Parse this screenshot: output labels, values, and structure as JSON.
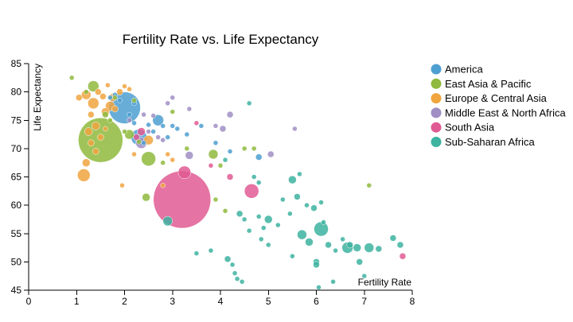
{
  "chart_data": {
    "type": "scatter",
    "title": "Fertility Rate vs. Life Expectancy",
    "xlabel": "Fertility Rate",
    "ylabel": "Life Expectancy",
    "xlim": [
      0,
      8
    ],
    "ylim": [
      45,
      85
    ],
    "x_ticks": [
      0,
      1,
      2,
      3,
      4,
      5,
      6,
      7,
      8
    ],
    "y_ticks": [
      45,
      50,
      55,
      60,
      65,
      70,
      75,
      80,
      85
    ],
    "grid": false,
    "legend_position": "right",
    "series": [
      {
        "name": "America",
        "color": "#4e9fd1",
        "points": [
          {
            "x": 2.0,
            "y": 77.2,
            "size": 20
          },
          {
            "x": 2.3,
            "y": 72.0,
            "size": 10
          },
          {
            "x": 2.7,
            "y": 75.0,
            "size": 7
          },
          {
            "x": 2.2,
            "y": 74.5,
            "size": 3
          },
          {
            "x": 1.9,
            "y": 78.5,
            "size": 3
          },
          {
            "x": 1.7,
            "y": 79.0,
            "size": 3
          },
          {
            "x": 2.1,
            "y": 76.0,
            "size": 3
          },
          {
            "x": 2.5,
            "y": 74.2,
            "size": 3
          },
          {
            "x": 2.6,
            "y": 73.0,
            "size": 3
          },
          {
            "x": 3.0,
            "y": 74.0,
            "size": 3
          },
          {
            "x": 2.4,
            "y": 71.0,
            "size": 3
          },
          {
            "x": 2.9,
            "y": 72.0,
            "size": 3
          },
          {
            "x": 3.3,
            "y": 72.5,
            "size": 3
          },
          {
            "x": 3.6,
            "y": 74.0,
            "size": 3
          },
          {
            "x": 3.9,
            "y": 71.0,
            "size": 3
          },
          {
            "x": 2.8,
            "y": 74.0,
            "size": 3
          },
          {
            "x": 1.8,
            "y": 79.5,
            "size": 3
          },
          {
            "x": 2.2,
            "y": 78.0,
            "size": 3
          },
          {
            "x": 4.2,
            "y": 69.5,
            "size": 3
          },
          {
            "x": 4.8,
            "y": 68.5,
            "size": 4
          },
          {
            "x": 3.1,
            "y": 73.5,
            "size": 3
          }
        ]
      },
      {
        "name": "East Asia & Pacific",
        "color": "#8fba3d",
        "points": [
          {
            "x": 1.5,
            "y": 71.5,
            "size": 28
          },
          {
            "x": 2.5,
            "y": 68.2,
            "size": 9
          },
          {
            "x": 1.35,
            "y": 81.0,
            "size": 7
          },
          {
            "x": 2.1,
            "y": 72.5,
            "size": 6
          },
          {
            "x": 2.45,
            "y": 61.4,
            "size": 5
          },
          {
            "x": 3.85,
            "y": 69.0,
            "size": 6
          },
          {
            "x": 0.9,
            "y": 82.5,
            "size": 3
          },
          {
            "x": 1.2,
            "y": 80.0,
            "size": 3
          },
          {
            "x": 1.6,
            "y": 76.0,
            "size": 4
          },
          {
            "x": 1.8,
            "y": 79.0,
            "size": 3
          },
          {
            "x": 2.2,
            "y": 78.5,
            "size": 3
          },
          {
            "x": 2.0,
            "y": 73.0,
            "size": 3
          },
          {
            "x": 2.8,
            "y": 67.5,
            "size": 3
          },
          {
            "x": 3.0,
            "y": 76.5,
            "size": 3
          },
          {
            "x": 3.9,
            "y": 61.0,
            "size": 3
          },
          {
            "x": 4.1,
            "y": 59.0,
            "size": 3
          },
          {
            "x": 4.7,
            "y": 70.0,
            "size": 3
          },
          {
            "x": 4.5,
            "y": 70.0,
            "size": 3
          },
          {
            "x": 7.1,
            "y": 63.5,
            "size": 3
          },
          {
            "x": 4.0,
            "y": 67.0,
            "size": 3
          },
          {
            "x": 3.3,
            "y": 70.0,
            "size": 3
          },
          {
            "x": 1.7,
            "y": 75.0,
            "size": 3
          },
          {
            "x": 2.3,
            "y": 71.2,
            "size": 3
          }
        ]
      },
      {
        "name": "Europe & Central Asia",
        "color": "#f0a53f",
        "points": [
          {
            "x": 1.15,
            "y": 65.3,
            "size": 8
          },
          {
            "x": 1.35,
            "y": 78.0,
            "size": 7
          },
          {
            "x": 1.2,
            "y": 79.5,
            "size": 6
          },
          {
            "x": 1.7,
            "y": 77.5,
            "size": 6
          },
          {
            "x": 1.75,
            "y": 79.0,
            "size": 5
          },
          {
            "x": 1.25,
            "y": 73.0,
            "size": 5
          },
          {
            "x": 1.4,
            "y": 74.0,
            "size": 5
          },
          {
            "x": 1.6,
            "y": 76.5,
            "size": 5
          },
          {
            "x": 1.45,
            "y": 80.0,
            "size": 4
          },
          {
            "x": 1.55,
            "y": 79.2,
            "size": 4
          },
          {
            "x": 1.3,
            "y": 76.0,
            "size": 4
          },
          {
            "x": 2.5,
            "y": 71.5,
            "size": 6
          },
          {
            "x": 1.2,
            "y": 67.5,
            "size": 5
          },
          {
            "x": 1.05,
            "y": 79.0,
            "size": 4
          },
          {
            "x": 1.9,
            "y": 80.0,
            "size": 4
          },
          {
            "x": 2.0,
            "y": 81.0,
            "size": 3
          },
          {
            "x": 1.65,
            "y": 81.2,
            "size": 3
          },
          {
            "x": 1.5,
            "y": 72.0,
            "size": 4
          },
          {
            "x": 1.4,
            "y": 69.5,
            "size": 4
          },
          {
            "x": 2.1,
            "y": 80.5,
            "size": 3
          },
          {
            "x": 1.8,
            "y": 77.0,
            "size": 4
          },
          {
            "x": 2.2,
            "y": 69.0,
            "size": 3
          },
          {
            "x": 2.9,
            "y": 69.0,
            "size": 3
          },
          {
            "x": 3.0,
            "y": 68.0,
            "size": 3
          },
          {
            "x": 1.95,
            "y": 63.5,
            "size": 3
          },
          {
            "x": 2.8,
            "y": 63.5,
            "size": 3
          },
          {
            "x": 1.3,
            "y": 71.0,
            "size": 4
          },
          {
            "x": 1.6,
            "y": 73.5,
            "size": 3
          }
        ]
      },
      {
        "name": "Middle East & North Africa",
        "color": "#a08ec4",
        "points": [
          {
            "x": 2.35,
            "y": 71.0,
            "size": 7
          },
          {
            "x": 3.35,
            "y": 68.8,
            "size": 5
          },
          {
            "x": 4.05,
            "y": 73.5,
            "size": 4
          },
          {
            "x": 4.2,
            "y": 76.0,
            "size": 4
          },
          {
            "x": 3.0,
            "y": 79.0,
            "size": 3
          },
          {
            "x": 2.9,
            "y": 78.0,
            "size": 3
          },
          {
            "x": 3.35,
            "y": 77.0,
            "size": 3
          },
          {
            "x": 5.05,
            "y": 69.0,
            "size": 4
          },
          {
            "x": 5.55,
            "y": 73.5,
            "size": 3
          },
          {
            "x": 2.7,
            "y": 72.0,
            "size": 3
          },
          {
            "x": 2.6,
            "y": 75.8,
            "size": 3
          },
          {
            "x": 2.5,
            "y": 73.0,
            "size": 3
          },
          {
            "x": 2.1,
            "y": 75.0,
            "size": 3
          },
          {
            "x": 3.9,
            "y": 74.0,
            "size": 3
          },
          {
            "x": 2.8,
            "y": 71.5,
            "size": 3
          },
          {
            "x": 2.4,
            "y": 76.0,
            "size": 3
          }
        ]
      },
      {
        "name": "South Asia",
        "color": "#e05a93",
        "points": [
          {
            "x": 3.2,
            "y": 61.0,
            "size": 36
          },
          {
            "x": 4.65,
            "y": 62.5,
            "size": 9
          },
          {
            "x": 3.25,
            "y": 65.8,
            "size": 8
          },
          {
            "x": 2.35,
            "y": 73.0,
            "size": 5
          },
          {
            "x": 7.8,
            "y": 51.0,
            "size": 4
          },
          {
            "x": 2.25,
            "y": 72.0,
            "size": 4
          },
          {
            "x": 4.2,
            "y": 65.0,
            "size": 4
          },
          {
            "x": 3.8,
            "y": 67.0,
            "size": 3
          },
          {
            "x": 3.5,
            "y": 74.5,
            "size": 3
          }
        ]
      },
      {
        "name": "Sub-Saharan Africa",
        "color": "#3db3a0",
        "points": [
          {
            "x": 6.1,
            "y": 55.8,
            "size": 9
          },
          {
            "x": 6.65,
            "y": 52.5,
            "size": 7
          },
          {
            "x": 2.9,
            "y": 57.2,
            "size": 6
          },
          {
            "x": 5.5,
            "y": 64.5,
            "size": 5
          },
          {
            "x": 5.7,
            "y": 54.8,
            "size": 6
          },
          {
            "x": 6.85,
            "y": 52.5,
            "size": 5
          },
          {
            "x": 7.1,
            "y": 52.5,
            "size": 6
          },
          {
            "x": 7.3,
            "y": 52.3,
            "size": 4
          },
          {
            "x": 5.85,
            "y": 53.5,
            "size": 5
          },
          {
            "x": 6.25,
            "y": 53.0,
            "size": 4
          },
          {
            "x": 5.0,
            "y": 57.5,
            "size": 5
          },
          {
            "x": 6.0,
            "y": 50.0,
            "size": 4
          },
          {
            "x": 6.0,
            "y": 49.5,
            "size": 4
          },
          {
            "x": 6.7,
            "y": 53.0,
            "size": 4
          },
          {
            "x": 6.9,
            "y": 50.0,
            "size": 4
          },
          {
            "x": 7.6,
            "y": 54.2,
            "size": 4
          },
          {
            "x": 7.75,
            "y": 53.0,
            "size": 4
          },
          {
            "x": 7.0,
            "y": 47.5,
            "size": 3
          },
          {
            "x": 6.05,
            "y": 45.5,
            "size": 3
          },
          {
            "x": 6.35,
            "y": 46.5,
            "size": 3
          },
          {
            "x": 4.3,
            "y": 48.0,
            "size": 3
          },
          {
            "x": 4.35,
            "y": 47.0,
            "size": 3
          },
          {
            "x": 4.45,
            "y": 46.5,
            "size": 3
          },
          {
            "x": 4.15,
            "y": 50.5,
            "size": 4
          },
          {
            "x": 4.25,
            "y": 49.5,
            "size": 3
          },
          {
            "x": 3.5,
            "y": 51.5,
            "size": 3
          },
          {
            "x": 4.4,
            "y": 58.5,
            "size": 4
          },
          {
            "x": 4.6,
            "y": 55.5,
            "size": 3
          },
          {
            "x": 4.5,
            "y": 57.5,
            "size": 3
          },
          {
            "x": 4.8,
            "y": 64.0,
            "size": 3
          },
          {
            "x": 5.3,
            "y": 61.0,
            "size": 3
          },
          {
            "x": 5.45,
            "y": 58.5,
            "size": 3
          },
          {
            "x": 5.2,
            "y": 56.5,
            "size": 3
          },
          {
            "x": 5.6,
            "y": 61.5,
            "size": 4
          },
          {
            "x": 5.95,
            "y": 59.5,
            "size": 4
          },
          {
            "x": 6.15,
            "y": 57.0,
            "size": 3
          },
          {
            "x": 6.1,
            "y": 60.5,
            "size": 3
          },
          {
            "x": 5.8,
            "y": 60.0,
            "size": 3
          },
          {
            "x": 4.8,
            "y": 58.0,
            "size": 3
          },
          {
            "x": 4.1,
            "y": 68.0,
            "size": 3
          },
          {
            "x": 4.6,
            "y": 78.0,
            "size": 3
          },
          {
            "x": 4.85,
            "y": 54.0,
            "size": 3
          },
          {
            "x": 4.7,
            "y": 65.0,
            "size": 3
          },
          {
            "x": 5.0,
            "y": 53.0,
            "size": 3
          },
          {
            "x": 5.5,
            "y": 51.0,
            "size": 3
          },
          {
            "x": 6.4,
            "y": 52.0,
            "size": 3
          },
          {
            "x": 6.55,
            "y": 54.0,
            "size": 3
          },
          {
            "x": 3.8,
            "y": 52.0,
            "size": 3
          },
          {
            "x": 4.9,
            "y": 56.0,
            "size": 3
          },
          {
            "x": 5.65,
            "y": 65.5,
            "size": 3
          }
        ]
      }
    ]
  }
}
